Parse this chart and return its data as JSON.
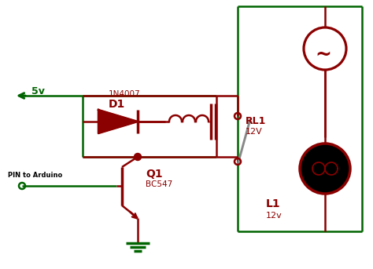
{
  "bg_color": "#ffffff",
  "dark_red": "#8B0000",
  "green": "#006400",
  "gray": "#888888",
  "components": {
    "diode_label": "D1",
    "diode_part": "1N4007",
    "transistor_label": "Q1",
    "transistor_part": "BC547",
    "relay_label": "RL1",
    "relay_voltage": "12V",
    "load_label": "L1",
    "load_voltage": "12v",
    "supply_label": "5v",
    "input_label": "PIN to Arduino"
  },
  "lw": 1.8,
  "lw_thick": 2.5
}
